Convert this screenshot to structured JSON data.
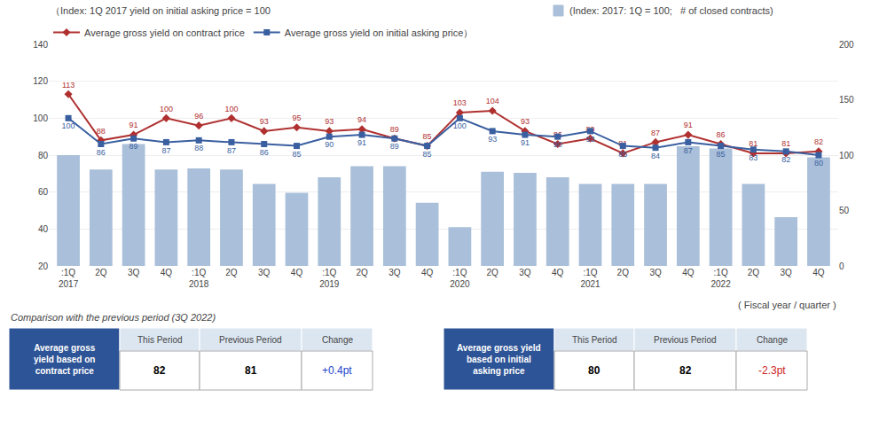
{
  "chart_data": {
    "type": "bar",
    "ylabel": "（Index: 1Q 2017 yield on initial asking price = 100",
    "y2label": "(Index: 2017: 1Q = 100;   # of closed contracts)",
    "xlabel": "( Fiscal year / quarter )",
    "categories": [
      ":1Q",
      "2Q",
      "3Q",
      "4Q",
      ":1Q",
      "2Q",
      "3Q",
      "4Q",
      ":1Q",
      "2Q",
      "3Q",
      "4Q",
      ":1Q",
      "2Q",
      "3Q",
      "4Q",
      ":1Q",
      "2Q",
      "3Q",
      "4Q",
      ":1Q",
      "2Q",
      "3Q",
      "4Q"
    ],
    "groups": [
      {
        "label": "2017",
        "first": 0
      },
      {
        "label": "2018",
        "first": 4
      },
      {
        "label": "2019",
        "first": 8
      },
      {
        "label": "2020",
        "first": 12
      },
      {
        "label": "2021",
        "first": 16
      },
      {
        "label": "2022",
        "first": 20
      }
    ],
    "ylim": [
      20,
      140
    ],
    "yticks": [
      20,
      40,
      60,
      80,
      100,
      120,
      140
    ],
    "y2lim": [
      0,
      200
    ],
    "y2ticks": [
      0,
      50,
      100,
      150,
      200
    ],
    "grid": true,
    "legend": "upper left",
    "series": [
      {
        "type": "bar",
        "axis": "y2",
        "color": "#aabfd9",
        "values": [
          100,
          87,
          110,
          87,
          88,
          87,
          74,
          66,
          80,
          90,
          90,
          57,
          35,
          85,
          84,
          80,
          74,
          74,
          74,
          108,
          106,
          74,
          44,
          98
        ]
      },
      {
        "type": "line",
        "name": "Average gross yield on contract price",
        "color": "#b03030",
        "marker": "diamond",
        "data_labels": true,
        "values": [
          113,
          88,
          91,
          100,
          96,
          100,
          93,
          95,
          93,
          94,
          89,
          85,
          103,
          104,
          93,
          86,
          89,
          81,
          87,
          91,
          86,
          81,
          81,
          82
        ]
      },
      {
        "type": "line",
        "name": "Average gross yield on initial asking price）",
        "color": "#3a5fa0",
        "marker": "square",
        "data_labels": true,
        "values": [
          100,
          86,
          89,
          87,
          88,
          87,
          86,
          85,
          90,
          91,
          89,
          85,
          100,
          93,
          91,
          90,
          93,
          85,
          84,
          87,
          85,
          83,
          82,
          80
        ]
      }
    ],
    "tables": {
      "title": "Comparison with the previous period (3Q 2022)",
      "header": [
        "This Period",
        "Previous Period",
        "Change"
      ],
      "label_color": "#2d5496",
      "header_color": "#dce6f1",
      "rows": [
        {
          "label": "Average gross\nyield based on\ncontract price",
          "values": [
            "82",
            "81",
            "+0.4pt"
          ],
          "colors": [
            "black",
            "black",
            "#2244cc"
          ]
        },
        {
          "label": "Average gross yield\nbased on initial\nasking price",
          "values": [
            "80",
            "82",
            "-2.3pt"
          ],
          "colors": [
            "black",
            "black",
            "#cc2222"
          ]
        }
      ]
    }
  }
}
